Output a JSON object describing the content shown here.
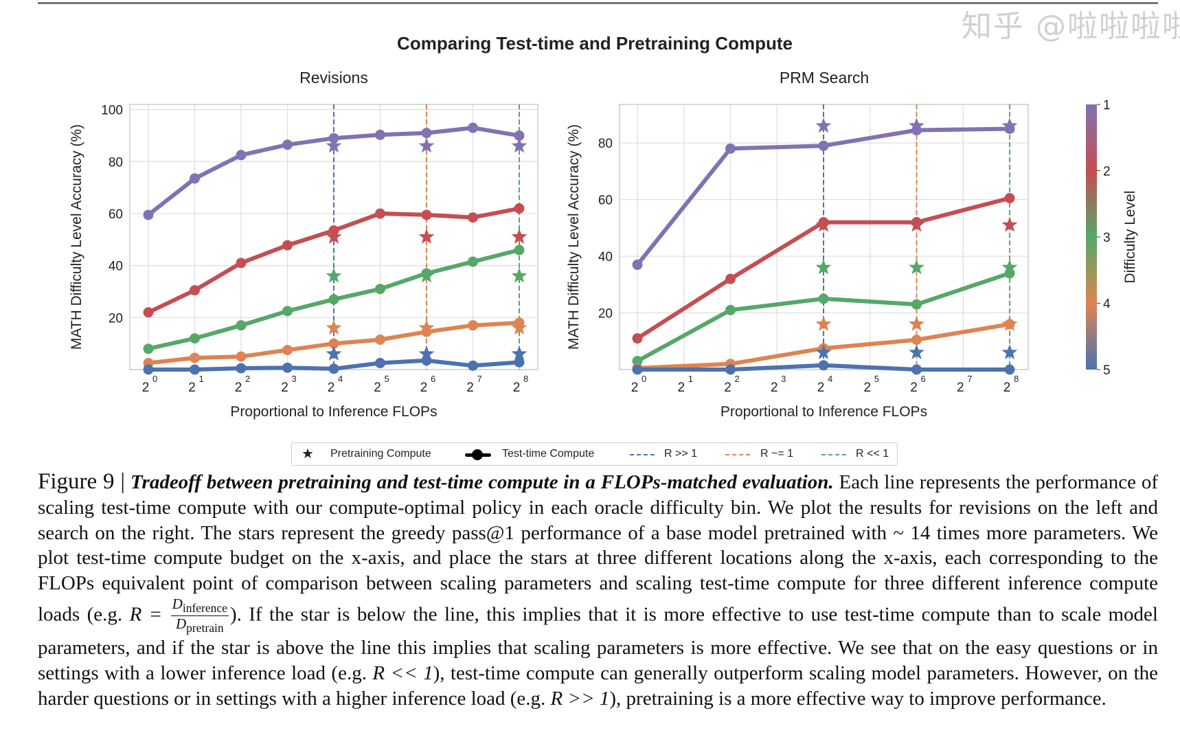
{
  "figure_title": "Comparing Test-time and Pretraining Compute",
  "colors": {
    "level1": "#8172b3",
    "level2": "#c44e52",
    "level3": "#55a868",
    "level4": "#dd8452",
    "level5": "#4c72b0",
    "r_much_greater": "#4c72b0",
    "r_approx": "#dd8452",
    "r_much_less": "#55a868"
  },
  "chart_data": [
    {
      "type": "line",
      "title": "Revisions",
      "xlabel": "Proportional to Inference FLOPs",
      "ylabel": "MATH Difficulty Level Accuracy (%)",
      "x_scale": "log2",
      "x": [
        1,
        2,
        4,
        8,
        16,
        32,
        64,
        128,
        256
      ],
      "xtick_labels": [
        [
          "2",
          "0"
        ],
        [
          "2",
          "1"
        ],
        [
          "2",
          "2"
        ],
        [
          "2",
          "3"
        ],
        [
          "2",
          "4"
        ],
        [
          "2",
          "5"
        ],
        [
          "2",
          "6"
        ],
        [
          "2",
          "7"
        ],
        [
          "2",
          "8"
        ]
      ],
      "yticks": [
        20,
        40,
        60,
        80,
        100
      ],
      "ylim": [
        0,
        102
      ],
      "grid": true,
      "series": [
        {
          "level": 1,
          "values": [
            59.5,
            73.5,
            82.5,
            86.5,
            89,
            90.3,
            91,
            93,
            90
          ]
        },
        {
          "level": 2,
          "values": [
            22,
            30.5,
            41,
            47.8,
            53.5,
            60,
            59.5,
            58.5,
            62
          ]
        },
        {
          "level": 3,
          "values": [
            8,
            12,
            17,
            22.5,
            27,
            31,
            37,
            41.5,
            46
          ]
        },
        {
          "level": 4,
          "values": [
            2.5,
            4.5,
            5,
            7.5,
            10,
            11.5,
            14.5,
            17,
            18
          ]
        },
        {
          "level": 5,
          "values": [
            0,
            0,
            0.5,
            0.7,
            0.3,
            2.5,
            3.5,
            1.5,
            2.8
          ]
        }
      ],
      "stars_x": [
        16,
        64,
        256
      ],
      "stars": [
        {
          "level": 1,
          "values": [
            86,
            86,
            86
          ]
        },
        {
          "level": 2,
          "values": [
            51,
            51,
            51
          ]
        },
        {
          "level": 3,
          "values": [
            36,
            36,
            36
          ]
        },
        {
          "level": 4,
          "values": [
            16,
            16,
            16
          ]
        },
        {
          "level": 5,
          "values": [
            6,
            6,
            6
          ]
        }
      ],
      "vlines": [
        {
          "x": 16,
          "ratio": "R >> 1"
        },
        {
          "x": 64,
          "ratio": "R ~= 1"
        },
        {
          "x": 256,
          "ratio": "R << 1"
        }
      ]
    },
    {
      "type": "line",
      "title": "PRM Search",
      "xlabel": "Proportional to Inference FLOPs",
      "ylabel": "MATH Difficulty Level Accuracy (%)",
      "x_scale": "log2",
      "x": [
        1,
        4,
        16,
        64,
        256
      ],
      "xtick_values": [
        1,
        2,
        4,
        8,
        16,
        32,
        64,
        128,
        256
      ],
      "xtick_labels": [
        [
          "2",
          "0"
        ],
        [
          "2",
          "1"
        ],
        [
          "2",
          "2"
        ],
        [
          "2",
          "3"
        ],
        [
          "2",
          "4"
        ],
        [
          "2",
          "5"
        ],
        [
          "2",
          "6"
        ],
        [
          "2",
          "7"
        ],
        [
          "2",
          "8"
        ]
      ],
      "yticks": [
        20,
        40,
        60,
        80
      ],
      "ylim": [
        0,
        93.6
      ],
      "grid": true,
      "series": [
        {
          "level": 1,
          "values": [
            37,
            78,
            79,
            84.5,
            85
          ]
        },
        {
          "level": 2,
          "values": [
            11,
            32,
            52,
            52,
            60.5
          ]
        },
        {
          "level": 3,
          "values": [
            3,
            21,
            25,
            23,
            34
          ]
        },
        {
          "level": 4,
          "values": [
            0.5,
            2,
            7.5,
            10.5,
            16
          ]
        },
        {
          "level": 5,
          "values": [
            0,
            0,
            1.5,
            0,
            0
          ]
        }
      ],
      "stars_x": [
        16,
        64,
        256
      ],
      "stars": [
        {
          "level": 1,
          "values": [
            86,
            86,
            86
          ]
        },
        {
          "level": 2,
          "values": [
            51,
            51,
            51
          ]
        },
        {
          "level": 3,
          "values": [
            36,
            36,
            36
          ]
        },
        {
          "level": 4,
          "values": [
            16,
            16,
            16
          ]
        },
        {
          "level": 5,
          "values": [
            6,
            6,
            6
          ]
        }
      ],
      "vlines": [
        {
          "x": 16,
          "ratio": "R >> 1"
        },
        {
          "x": 64,
          "ratio": "R ~= 1"
        },
        {
          "x": 256,
          "ratio": "R << 1"
        }
      ]
    }
  ],
  "colorbar": {
    "label": "Difficulty Level",
    "ticks": [
      "1",
      "2",
      "3",
      "4",
      "5"
    ]
  },
  "legend": {
    "placement": "bottom-center",
    "items": [
      "Pretraining Compute",
      "Test-time Compute",
      "R >> 1",
      "R ~= 1",
      "R << 1"
    ]
  },
  "caption": {
    "figure_label": "Figure 9 |",
    "bold_title": "Tradeoff between pretraining and test-time compute in a FLOPs-matched evaluation.",
    "text1": " Each line represents the performance of scaling test-time compute with our compute-optimal policy in each oracle difficulty bin. We plot the results for revisions on the left and search on the right. The stars represent the greedy pass@1 performance of a base model pretrained with ~ 14 times more parameters. We plot test-time compute budget on the x-axis, and place the stars at three different locations along the x-axis, each corresponding to the FLOPs equivalent point of comparison between scaling parameters and scaling test-time compute for three different inference compute loads (e.g. ",
    "formula_lhs": "R = ",
    "frac_num": "D",
    "frac_num_sub": "inference",
    "frac_den": "D",
    "frac_den_sub": "pretrain",
    "text2": "). If the star is below the line, this implies that it is more effective to use test-time compute than to scale model parameters, and if the star is above the line this implies that scaling parameters is more effective. We see that on the easy questions or in settings with a lower inference load (e.g. ",
    "r_low": "R << 1",
    "text3": "), test-time compute can generally outperform scaling model parameters. However, on the harder questions or in settings with a higher inference load (e.g. ",
    "r_high": "R >> 1",
    "text4": "), pretraining is a more effective way to improve performance."
  },
  "watermark": "知乎 @啦啦啦啦"
}
